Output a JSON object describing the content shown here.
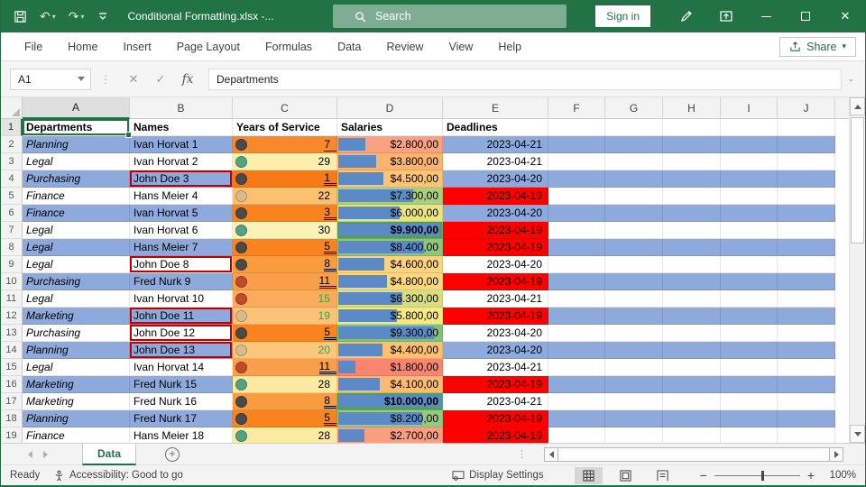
{
  "titlebar": {
    "title": "Conditional Formatting.xlsx  -...",
    "search": "Search",
    "sign_in": "Sign in"
  },
  "ribbon": {
    "tabs": [
      "File",
      "Home",
      "Insert",
      "Page Layout",
      "Formulas",
      "Data",
      "Review",
      "View",
      "Help"
    ],
    "share_label": "Share"
  },
  "formula_bar": {
    "name_box": "A1",
    "fx_label": "fx",
    "content": "Departments"
  },
  "grid": {
    "column_letters": [
      "A",
      "B",
      "C",
      "D",
      "E",
      "F",
      "G",
      "H",
      "I",
      "J"
    ],
    "selected_cell": "A1",
    "header_row": {
      "num": "1",
      "cells": [
        "Departments",
        "Names",
        "Years of Service",
        "Salaries",
        "Deadlines"
      ]
    },
    "rows": [
      {
        "num": "2",
        "dept": "Planning",
        "name": "Ivan Horvat 1",
        "stripe": true,
        "john": false,
        "years": {
          "v": "7",
          "icon": "dark",
          "bg": "#F8892B",
          "u": "single",
          "green": false
        },
        "salary": {
          "v": "$2.800,00",
          "pct": 28,
          "bg": "#F9A180",
          "bold": false,
          "top": false
        },
        "deadline": {
          "v": "2023-04-21",
          "fill": "stripe"
        }
      },
      {
        "num": "3",
        "dept": "Legal",
        "name": "Ivan Horvat 2",
        "stripe": false,
        "john": false,
        "years": {
          "v": "29",
          "icon": "green",
          "bg": "#FCEFAE",
          "u": null,
          "green": false
        },
        "salary": {
          "v": "$3.800,00",
          "pct": 38,
          "bg": "#FBB46E",
          "bold": false,
          "top": false
        },
        "deadline": {
          "v": "2023-04-21",
          "fill": "white"
        }
      },
      {
        "num": "4",
        "dept": "Purchasing",
        "name": "John Doe 3",
        "stripe": true,
        "john": true,
        "years": {
          "v": "1",
          "icon": "dark",
          "bg": "#F87918",
          "u": "double",
          "green": false
        },
        "salary": {
          "v": "$4.500,00",
          "pct": 45,
          "bg": "#FCC476",
          "bold": false,
          "top": false
        },
        "deadline": {
          "v": "2023-04-20",
          "fill": "stripe"
        }
      },
      {
        "num": "5",
        "dept": "Finance",
        "name": "Hans Meier 4",
        "stripe": false,
        "john": false,
        "years": {
          "v": "22",
          "icon": "tan",
          "bg": "#FBC170",
          "u": null,
          "green": false
        },
        "salary": {
          "v": "$7.300,00",
          "pct": 73,
          "bg": "#ABCE7E",
          "bold": false,
          "top": false
        },
        "deadline": {
          "v": "2023-04-19",
          "fill": "red"
        }
      },
      {
        "num": "6",
        "dept": "Finance",
        "name": "Ivan Horvat 5",
        "stripe": true,
        "john": false,
        "years": {
          "v": "3",
          "icon": "dark",
          "bg": "#F8831F",
          "u": "double",
          "green": false
        },
        "salary": {
          "v": "$6.000,00",
          "pct": 60,
          "bg": "#EBE483",
          "bold": false,
          "top": false
        },
        "deadline": {
          "v": "2023-04-20",
          "fill": "stripe"
        }
      },
      {
        "num": "7",
        "dept": "Legal",
        "name": "Ivan Horvat 6",
        "stripe": false,
        "john": false,
        "years": {
          "v": "30",
          "icon": "green",
          "bg": "#FCF2B6",
          "u": null,
          "green": false
        },
        "salary": {
          "v": "$9.900,00",
          "pct": 99,
          "bg": "#72BA7B",
          "bold": true,
          "top": true
        },
        "deadline": {
          "v": "2023-04-19",
          "fill": "red"
        }
      },
      {
        "num": "8",
        "dept": "Legal",
        "name": "Hans Meier 7",
        "stripe": true,
        "john": false,
        "years": {
          "v": "5",
          "icon": "dark",
          "bg": "#F8831F",
          "u": "double",
          "green": false
        },
        "salary": {
          "v": "$8.400,00",
          "pct": 84,
          "bg": "#8FC57D",
          "bold": false,
          "top": false
        },
        "deadline": {
          "v": "2023-04-19",
          "fill": "red"
        }
      },
      {
        "num": "9",
        "dept": "Legal",
        "name": "John Doe 8",
        "stripe": false,
        "john": true,
        "years": {
          "v": "8",
          "icon": "dark",
          "bg": "#F99C3F",
          "u": "double",
          "green": false
        },
        "salary": {
          "v": "$4.600,00",
          "pct": 46,
          "bg": "#FCD27A",
          "bold": false,
          "top": false
        },
        "deadline": {
          "v": "2023-04-20",
          "fill": "white"
        }
      },
      {
        "num": "10",
        "dept": "Purchasing",
        "name": "Fred Nurk 9",
        "stripe": true,
        "john": false,
        "years": {
          "v": "11",
          "icon": "red",
          "bg": "#FA9F49",
          "u": "double",
          "green": false
        },
        "salary": {
          "v": "$4.800,00",
          "pct": 48,
          "bg": "#FDD77E",
          "bold": false,
          "top": false
        },
        "deadline": {
          "v": "2023-04-19",
          "fill": "red"
        }
      },
      {
        "num": "11",
        "dept": "Legal",
        "name": "Ivan Horvat 10",
        "stripe": false,
        "john": false,
        "years": {
          "v": "15",
          "icon": "red",
          "bg": "#FAAC5C",
          "u": null,
          "green": true
        },
        "salary": {
          "v": "$6.300,00",
          "pct": 63,
          "bg": "#D7DD80",
          "bold": false,
          "top": false
        },
        "deadline": {
          "v": "2023-04-21",
          "fill": "white"
        }
      },
      {
        "num": "12",
        "dept": "Marketing",
        "name": "John Doe 11",
        "stripe": true,
        "john": true,
        "years": {
          "v": "19",
          "icon": "tan",
          "bg": "#FBC377",
          "u": null,
          "green": true
        },
        "salary": {
          "v": "$5.800,00",
          "pct": 58,
          "bg": "#F6E983",
          "bold": false,
          "top": false
        },
        "deadline": {
          "v": "2023-04-19",
          "fill": "red"
        }
      },
      {
        "num": "13",
        "dept": "Purchasing",
        "name": "John Doe 12",
        "stripe": false,
        "john": true,
        "years": {
          "v": "5",
          "icon": "dark",
          "bg": "#F8831F",
          "u": "double",
          "green": false
        },
        "salary": {
          "v": "$9.300,00",
          "pct": 93,
          "bg": "#82C07C",
          "bold": false,
          "top": false
        },
        "deadline": {
          "v": "2023-04-20",
          "fill": "white"
        }
      },
      {
        "num": "14",
        "dept": "Planning",
        "name": "John Doe 13",
        "stripe": true,
        "john": true,
        "years": {
          "v": "20",
          "icon": "tan",
          "bg": "#FBC77D",
          "u": null,
          "green": true
        },
        "salary": {
          "v": "$4.400,00",
          "pct": 44,
          "bg": "#FCC170",
          "bold": false,
          "top": false
        },
        "deadline": {
          "v": "2023-04-20",
          "fill": "stripe"
        }
      },
      {
        "num": "15",
        "dept": "Legal",
        "name": "Ivan Horvat 14",
        "stripe": false,
        "john": false,
        "years": {
          "v": "11",
          "icon": "red",
          "bg": "#FA9F49",
          "u": "double",
          "green": false
        },
        "salary": {
          "v": "$1.800,00",
          "pct": 18,
          "bg": "#F98570",
          "bold": false,
          "top": false
        },
        "deadline": {
          "v": "2023-04-21",
          "fill": "white"
        }
      },
      {
        "num": "16",
        "dept": "Marketing",
        "name": "Fred Nurk 15",
        "stripe": true,
        "john": false,
        "years": {
          "v": "28",
          "icon": "green",
          "bg": "#FCE9A2",
          "u": null,
          "green": false
        },
        "salary": {
          "v": "$4.100,00",
          "pct": 41,
          "bg": "#FBBA72",
          "bold": false,
          "top": false
        },
        "deadline": {
          "v": "2023-04-19",
          "fill": "red"
        }
      },
      {
        "num": "17",
        "dept": "Marketing",
        "name": "Fred Nurk 16",
        "stripe": false,
        "john": false,
        "years": {
          "v": "8",
          "icon": "dark",
          "bg": "#F99C3F",
          "u": "double",
          "green": false
        },
        "salary": {
          "v": "$10.000,00",
          "pct": 100,
          "bg": "#63BE7B",
          "bold": true,
          "top": true
        },
        "deadline": {
          "v": "2023-04-21",
          "fill": "white"
        }
      },
      {
        "num": "18",
        "dept": "Planning",
        "name": "Fred Nurk 17",
        "stripe": true,
        "john": false,
        "years": {
          "v": "5",
          "icon": "dark",
          "bg": "#F8831F",
          "u": "double",
          "green": false
        },
        "salary": {
          "v": "$8.200,00",
          "pct": 82,
          "bg": "#96C87E",
          "bold": false,
          "top": false
        },
        "deadline": {
          "v": "2023-04-19",
          "fill": "red"
        }
      },
      {
        "num": "19",
        "dept": "Finance",
        "name": "Hans Meier 18",
        "stripe": false,
        "john": false,
        "years": {
          "v": "28",
          "icon": "green",
          "bg": "#FCE9A2",
          "u": null,
          "green": false
        },
        "salary": {
          "v": "$2.700,00",
          "pct": 27,
          "bg": "#F99E7E",
          "bold": false,
          "top": false
        },
        "deadline": {
          "v": "2023-04-19",
          "fill": "red"
        }
      }
    ]
  },
  "sheet_bar": {
    "active_tab": "Data"
  },
  "status_bar": {
    "ready": "Ready",
    "accessibility": "Accessibility: Good to go",
    "display_settings": "Display Settings",
    "zoom_level": "100%"
  },
  "colors": {
    "excel_green": "#217346",
    "stripe_blue": "#8EA9DB",
    "deadline_red": "#FF0000",
    "databar_blue": "#5B8AC6",
    "john_doe_border": "#C00000",
    "top_salary_border": "#55A046",
    "green_font": "#3DA144",
    "icons": {
      "dark": "#4A4A4A",
      "green": "#54A283",
      "tan": "#D8BB8B",
      "red": "#C04A2F"
    }
  }
}
